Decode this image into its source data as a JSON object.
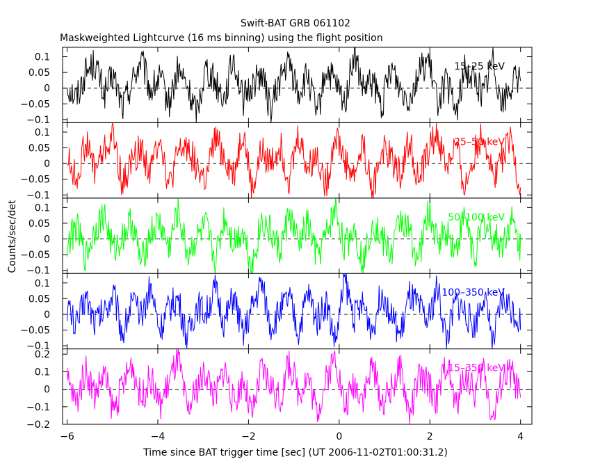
{
  "chart_data": {
    "type": "line",
    "title": "Swift-BAT GRB 061102",
    "subtitle": "Maskweighted Lightcurve (16 ms binning) using the flight position",
    "xlabel": "Time since BAT trigger time [sec] (UT 2006-11-02T01:00:31.2)",
    "ylabel": "Counts/sec/det",
    "xlim": [
      -6.1,
      4.25
    ],
    "x_ticks": [
      -6,
      -4,
      -2,
      0,
      2,
      4
    ],
    "x_tick_labels": [
      "−6",
      "−4",
      "−2",
      "0",
      "2",
      "4"
    ],
    "bin_width_sec": 0.016,
    "x_start": -6.0,
    "x_end": 4.0,
    "grid": false,
    "legend": "none",
    "panels": [
      {
        "name": "15–25 keV",
        "color": "#000000",
        "ylim": [
          -0.11,
          0.13
        ],
        "y_ticks": [
          -0.1,
          -0.05,
          0,
          0.05,
          0.1
        ],
        "y_tick_labels": [
          "−0.1",
          "−0.05",
          "0",
          "0.05",
          "0.1"
        ],
        "values": [
          0.01,
          -0.03,
          0.05,
          0.08,
          -0.02,
          0.04,
          -0.06,
          0.02,
          0.09,
          -0.01,
          0.03,
          -0.05,
          0.06,
          0.0,
          -0.08,
          0.07,
          0.02,
          -0.03,
          0.1,
          -0.04,
          0.01,
          0.05,
          -0.07,
          0.03,
          0.08,
          -0.02,
          0.04,
          -0.09,
          0.06,
          0.01,
          -0.05,
          0.11,
          -0.01,
          0.02,
          -0.06,
          0.07,
          0.0,
          -0.03,
          0.05,
          0.09,
          -0.04,
          0.02,
          -0.08,
          0.06,
          0.03,
          -0.02,
          0.1,
          -0.05,
          0.01,
          0.04
        ]
      },
      {
        "name": "25–50 keV",
        "color": "#ff0000",
        "ylim": [
          -0.11,
          0.13
        ],
        "y_ticks": [
          -0.1,
          -0.05,
          0,
          0.05,
          0.1
        ],
        "y_tick_labels": [
          "−0.1",
          "−0.05",
          "0",
          "0.05",
          "0.1"
        ],
        "values": [
          0.02,
          -0.05,
          0.07,
          -0.02,
          0.04,
          0.09,
          -0.07,
          0.01,
          0.05,
          -0.03,
          0.1,
          -0.08,
          0.03,
          0.06,
          -0.01,
          -0.06,
          0.08,
          0.02,
          -0.04,
          0.11,
          -0.09,
          0.04,
          0.0,
          0.06,
          -0.05,
          0.09,
          -0.02,
          0.03,
          -0.07,
          0.1,
          0.01,
          -0.04,
          0.07,
          -0.1,
          0.05,
          0.02,
          -0.03,
          0.08,
          -0.06,
          0.04,
          0.09,
          -0.01,
          0.06,
          -0.08,
          0.03,
          0.1,
          -0.04,
          0.02,
          0.07,
          -0.09
        ]
      },
      {
        "name": "50–100 keV",
        "color": "#00ff00",
        "ylim": [
          -0.11,
          0.13
        ],
        "y_ticks": [
          -0.1,
          -0.05,
          0,
          0.05,
          0.1
        ],
        "y_tick_labels": [
          "−0.1",
          "−0.05",
          "0",
          "0.05",
          "0.1"
        ],
        "values": [
          -0.02,
          0.04,
          -0.06,
          0.03,
          0.08,
          -0.04,
          0.01,
          0.06,
          -0.08,
          0.02,
          0.05,
          -0.03,
          0.09,
          -0.05,
          0.0,
          0.04,
          -0.07,
          0.07,
          -0.01,
          0.03,
          -0.09,
          0.06,
          0.02,
          -0.04,
          0.08,
          -0.02,
          0.05,
          -0.06,
          0.01,
          0.1,
          -0.03,
          0.04,
          -0.08,
          0.06,
          0.0,
          -0.05,
          0.07,
          0.02,
          -0.07,
          0.09,
          -0.01,
          0.03,
          -0.04,
          0.08,
          -0.06,
          0.05,
          0.01,
          -0.02,
          0.06,
          -0.03
        ]
      },
      {
        "name": "100–350 keV",
        "color": "#0000ff",
        "ylim": [
          -0.11,
          0.13
        ],
        "y_ticks": [
          -0.1,
          -0.05,
          0,
          0.05,
          0.1
        ],
        "y_tick_labels": [
          "−0.1",
          "−0.05",
          "0",
          "0.05",
          "0.1"
        ],
        "values": [
          0.03,
          -0.04,
          0.06,
          -0.02,
          0.01,
          0.07,
          -0.06,
          0.04,
          -0.01,
          0.09,
          -0.05,
          0.02,
          0.05,
          -0.08,
          0.03,
          0.0,
          0.08,
          -0.03,
          0.06,
          -0.07,
          0.02,
          0.1,
          -0.04,
          0.01,
          0.05,
          -0.06,
          0.07,
          -0.02,
          0.04,
          -0.09,
          0.11,
          -0.01,
          0.03,
          -0.05,
          0.08,
          0.0,
          -0.07,
          0.06,
          0.02,
          -0.03,
          0.09,
          -0.08,
          0.04,
          0.01,
          -0.04,
          0.07,
          -0.1,
          0.05,
          0.02,
          -0.02
        ]
      },
      {
        "name": "15–350 keV",
        "color": "#ff00ff",
        "ylim": [
          -0.2,
          0.23
        ],
        "y_ticks": [
          -0.2,
          -0.1,
          0,
          0.1,
          0.2
        ],
        "y_tick_labels": [
          "−0.2",
          "−0.1",
          "0",
          "0.1",
          "0.2"
        ],
        "values": [
          0.05,
          -0.08,
          0.12,
          -0.03,
          0.09,
          -0.12,
          0.02,
          0.15,
          -0.06,
          0.07,
          -0.1,
          0.04,
          0.18,
          -0.14,
          0.01,
          0.1,
          -0.05,
          0.13,
          -0.09,
          0.06,
          -0.16,
          0.11,
          0.03,
          -0.07,
          0.16,
          -0.02,
          0.08,
          -0.13,
          0.05,
          0.2,
          -0.11,
          0.04,
          -0.04,
          0.14,
          -0.08,
          0.0,
          0.12,
          -0.15,
          0.07,
          0.03,
          -0.06,
          0.17,
          -0.1,
          0.09,
          -0.03,
          0.13,
          -0.18,
          0.06,
          0.1,
          -0.05
        ]
      }
    ]
  }
}
